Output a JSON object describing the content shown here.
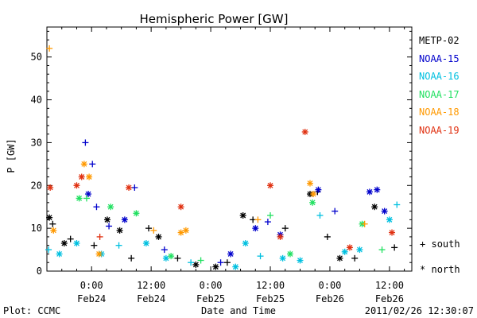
{
  "chart_data": {
    "type": "scatter",
    "title": "Hemispheric Power [GW]",
    "ylabel": "P [GW]",
    "xlabel": "Date and Time",
    "ylim": [
      0,
      57
    ],
    "yticks": [
      0,
      10,
      20,
      30,
      40,
      50
    ],
    "xlim": [
      "2011-02-23 15:00",
      "2011-02-26 16:30"
    ],
    "xticks": [
      {
        "t": "2011-02-24 00:00",
        "time": "0:00",
        "date": "Feb24"
      },
      {
        "t": "2011-02-24 12:00",
        "time": "12:00",
        "date": "Feb24"
      },
      {
        "t": "2011-02-25 00:00",
        "time": "0:00",
        "date": "Feb25"
      },
      {
        "t": "2011-02-25 12:00",
        "time": "12:00",
        "date": "Feb25"
      },
      {
        "t": "2011-02-26 00:00",
        "time": "0:00",
        "date": "Feb26"
      },
      {
        "t": "2011-02-26 12:00",
        "time": "12:00",
        "date": "Feb26"
      }
    ],
    "symbols": {
      "south": "+",
      "north": "*"
    },
    "series": [
      {
        "name": "METP-02",
        "color": "#000000",
        "points": [
          [
            "2011-02-23 15:30",
            12.5,
            "north"
          ],
          [
            "2011-02-23 16:10",
            11.0,
            "south"
          ],
          [
            "2011-02-23 18:30",
            6.5,
            "north"
          ],
          [
            "2011-02-23 19:45",
            7.5,
            "south"
          ],
          [
            "2011-02-24 00:30",
            6.0,
            "south"
          ],
          [
            "2011-02-24 03:10",
            12.0,
            "north"
          ],
          [
            "2011-02-24 05:40",
            9.5,
            "north"
          ],
          [
            "2011-02-24 08:00",
            3.0,
            "south"
          ],
          [
            "2011-02-24 11:30",
            10.0,
            "south"
          ],
          [
            "2011-02-24 13:30",
            8.0,
            "north"
          ],
          [
            "2011-02-24 17:20",
            3.0,
            "south"
          ],
          [
            "2011-02-24 21:00",
            1.5,
            "north"
          ],
          [
            "2011-02-25 01:00",
            1.0,
            "north"
          ],
          [
            "2011-02-25 03:20",
            2.0,
            "south"
          ],
          [
            "2011-02-25 06:30",
            13.0,
            "north"
          ],
          [
            "2011-02-25 08:30",
            12.0,
            "south"
          ],
          [
            "2011-02-25 15:00",
            10.0,
            "south"
          ],
          [
            "2011-02-25 20:00",
            18.0,
            "north"
          ],
          [
            "2011-02-25 21:30",
            18.5,
            "south"
          ],
          [
            "2011-02-25 23:30",
            8.0,
            "south"
          ],
          [
            "2011-02-26 02:00",
            3.0,
            "north"
          ],
          [
            "2011-02-26 05:00",
            3.0,
            "south"
          ],
          [
            "2011-02-26 09:00",
            15.0,
            "north"
          ],
          [
            "2011-02-26 13:00",
            5.5,
            "south"
          ]
        ]
      },
      {
        "name": "NOAA-15",
        "color": "#0000cc",
        "points": [
          [
            "2011-02-23 22:45",
            30.0,
            "south"
          ],
          [
            "2011-02-24 00:10",
            25.0,
            "south"
          ],
          [
            "2011-02-23 23:20",
            18.0,
            "north"
          ],
          [
            "2011-02-24 01:00",
            15.0,
            "south"
          ],
          [
            "2011-02-24 03:30",
            10.5,
            "south"
          ],
          [
            "2011-02-24 08:40",
            19.5,
            "south"
          ],
          [
            "2011-02-24 06:40",
            12.0,
            "north"
          ],
          [
            "2011-02-24 14:40",
            5.0,
            "south"
          ],
          [
            "2011-02-25 02:00",
            2.0,
            "south"
          ],
          [
            "2011-02-25 04:00",
            4.0,
            "north"
          ],
          [
            "2011-02-25 09:00",
            10.0,
            "north"
          ],
          [
            "2011-02-25 11:30",
            11.5,
            "south"
          ],
          [
            "2011-02-25 14:00",
            8.5,
            "north"
          ],
          [
            "2011-02-25 21:40",
            19.0,
            "north"
          ],
          [
            "2011-02-26 01:00",
            14.0,
            "south"
          ],
          [
            "2011-02-26 08:00",
            18.5,
            "north"
          ],
          [
            "2011-02-26 09:30",
            19.0,
            "north"
          ],
          [
            "2011-02-26 11:00",
            14.0,
            "north"
          ]
        ]
      },
      {
        "name": "NOAA-16",
        "color": "#00c0e0",
        "points": [
          [
            "2011-02-23 15:20",
            5.0,
            "south"
          ],
          [
            "2011-02-23 17:30",
            4.0,
            "north"
          ],
          [
            "2011-02-23 21:00",
            6.5,
            "north"
          ],
          [
            "2011-02-24 02:00",
            4.0,
            "north"
          ],
          [
            "2011-02-24 05:30",
            6.0,
            "south"
          ],
          [
            "2011-02-24 11:00",
            6.5,
            "north"
          ],
          [
            "2011-02-24 15:00",
            3.0,
            "north"
          ],
          [
            "2011-02-24 20:00",
            2.0,
            "south"
          ],
          [
            "2011-02-25 05:00",
            1.0,
            "north"
          ],
          [
            "2011-02-25 07:00",
            6.5,
            "north"
          ],
          [
            "2011-02-25 10:00",
            3.5,
            "south"
          ],
          [
            "2011-02-25 14:30",
            3.0,
            "north"
          ],
          [
            "2011-02-25 18:00",
            2.5,
            "north"
          ],
          [
            "2011-02-25 22:00",
            13.0,
            "south"
          ],
          [
            "2011-02-26 03:00",
            4.5,
            "north"
          ],
          [
            "2011-02-26 06:00",
            5.0,
            "north"
          ],
          [
            "2011-02-26 12:00",
            12.0,
            "north"
          ],
          [
            "2011-02-26 13:30",
            15.5,
            "south"
          ]
        ]
      },
      {
        "name": "NOAA-17",
        "color": "#20e060",
        "points": [
          [
            "2011-02-23 23:00",
            17.0,
            "south"
          ],
          [
            "2011-02-23 21:30",
            17.0,
            "north"
          ],
          [
            "2011-02-24 03:50",
            15.0,
            "north"
          ],
          [
            "2011-02-24 09:00",
            13.5,
            "north"
          ],
          [
            "2011-02-24 16:00",
            3.5,
            "north"
          ],
          [
            "2011-02-24 22:00",
            2.5,
            "south"
          ],
          [
            "2011-02-25 12:00",
            13.0,
            "south"
          ],
          [
            "2011-02-25 16:00",
            4.0,
            "north"
          ],
          [
            "2011-02-25 20:30",
            16.0,
            "north"
          ],
          [
            "2011-02-26 06:30",
            11.0,
            "north"
          ],
          [
            "2011-02-26 10:30",
            5.0,
            "south"
          ]
        ]
      },
      {
        "name": "NOAA-18",
        "color": "#ff9900",
        "points": [
          [
            "2011-02-23 15:30",
            52.0,
            "south"
          ],
          [
            "2011-02-23 16:20",
            9.5,
            "north"
          ],
          [
            "2011-02-23 22:30",
            25.0,
            "north"
          ],
          [
            "2011-02-23 23:30",
            22.0,
            "north"
          ],
          [
            "2011-02-24 01:30",
            4.0,
            "north"
          ],
          [
            "2011-02-24 12:30",
            9.5,
            "south"
          ],
          [
            "2011-02-24 18:00",
            9.0,
            "north"
          ],
          [
            "2011-02-24 19:00",
            9.5,
            "north"
          ],
          [
            "2011-02-25 09:30",
            12.0,
            "south"
          ],
          [
            "2011-02-25 20:00",
            20.5,
            "north"
          ],
          [
            "2011-02-25 20:40",
            18.0,
            "north"
          ],
          [
            "2011-02-26 07:00",
            11.0,
            "south"
          ]
        ]
      },
      {
        "name": "NOAA-19",
        "color": "#e03010",
        "points": [
          [
            "2011-02-23 15:40",
            19.5,
            "north"
          ],
          [
            "2011-02-23 21:00",
            20.0,
            "north"
          ],
          [
            "2011-02-23 22:00",
            22.0,
            "north"
          ],
          [
            "2011-02-24 01:40",
            8.0,
            "south"
          ],
          [
            "2011-02-24 07:30",
            19.5,
            "north"
          ],
          [
            "2011-02-24 18:00",
            15.0,
            "north"
          ],
          [
            "2011-02-25 12:00",
            20.0,
            "north"
          ],
          [
            "2011-02-25 19:00",
            32.5,
            "north"
          ],
          [
            "2011-02-25 14:00",
            8.0,
            "north"
          ],
          [
            "2011-02-26 04:00",
            5.5,
            "north"
          ],
          [
            "2011-02-26 12:30",
            9.0,
            "north"
          ]
        ]
      }
    ],
    "legend_hemisphere": [
      {
        "symbol": "+",
        "label": "south"
      },
      {
        "symbol": "*",
        "label": "north"
      }
    ],
    "legend_position": "right"
  },
  "footer": {
    "plot_credit": "Plot: CCMC",
    "timestamp": "2011/02/26 12:30:07"
  }
}
